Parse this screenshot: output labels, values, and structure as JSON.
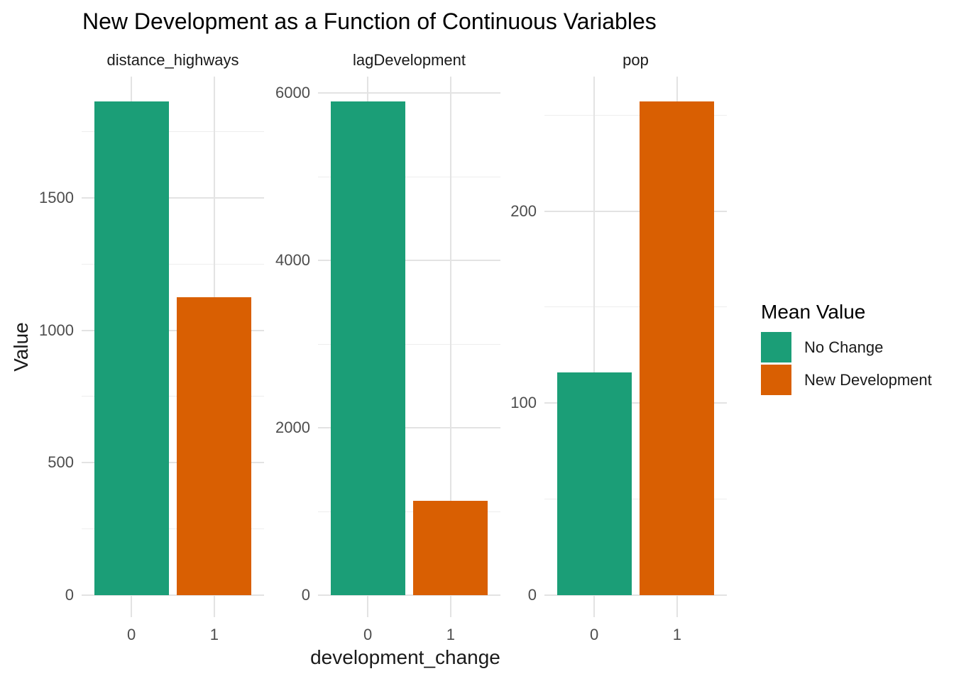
{
  "title": "New Development as a Function of Continuous Variables",
  "axes": {
    "x_title": "development_change",
    "y_title": "Value"
  },
  "legend": {
    "title": "Mean Value",
    "items": [
      {
        "label": "No Change",
        "color": "#1B9E77"
      },
      {
        "label": "New Development",
        "color": "#D95F02"
      }
    ]
  },
  "colors": {
    "teal": "#1B9E77",
    "orange": "#D95F02",
    "gridline_major": "#e3e3e3",
    "gridline_minor": "#eeeeee",
    "tick_text": "#4d4d4d",
    "dark_text": "#1a1a1a",
    "background": "#ffffff"
  },
  "chart_data": {
    "type": "bar",
    "title": "New Development as a Function of Continuous Variables",
    "xlabel": "development_change",
    "ylabel": "Value",
    "legend_title": "Mean Value",
    "legend_position": "right",
    "grid": true,
    "x_categories": [
      "0",
      "1"
    ],
    "series": [
      {
        "name": "No Change",
        "color": "#1B9E77"
      },
      {
        "name": "New Development",
        "color": "#D95F02"
      }
    ],
    "facets": [
      {
        "label": "distance_highways",
        "values": [
          1863,
          1125
        ],
        "y_ticks_major": [
          0,
          500,
          1000,
          1500
        ],
        "y_ticks_minor": [
          250,
          750,
          1250,
          1750
        ],
        "ylim": [
          0,
          1958
        ]
      },
      {
        "label": "lagDevelopment",
        "values": [
          5900,
          1127
        ],
        "y_ticks_major": [
          0,
          2000,
          4000,
          6000
        ],
        "y_ticks_minor": [
          1000,
          3000,
          5000
        ],
        "ylim": [
          0,
          6195
        ]
      },
      {
        "label": "pop",
        "values": [
          116,
          257
        ],
        "y_ticks_major": [
          0,
          100,
          200
        ],
        "y_ticks_minor": [
          50,
          150,
          250
        ],
        "ylim": [
          0,
          270
        ]
      }
    ]
  }
}
